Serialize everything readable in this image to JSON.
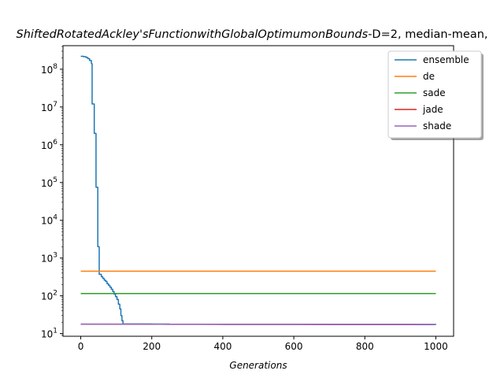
{
  "chart_data": {
    "type": "line",
    "title_italic": "ShiftedRotatedAckley'sFunctionwithGlobalOptimumonBounds",
    "title_rest": "-D=2, median-mean, ",
    "xlabel": "Generations",
    "ylabel": "",
    "yscale": "log",
    "xlim": [
      -50,
      1050
    ],
    "ylim": [
      8.5,
      420000000
    ],
    "x_ticks": [
      0,
      200,
      400,
      600,
      800,
      1000
    ],
    "y_tick_exponents": [
      1,
      2,
      3,
      4,
      5,
      6,
      7,
      8
    ],
    "y_tick_base": "10",
    "grid": false,
    "legend_placement": "top-right",
    "series": [
      {
        "name": "ensemble",
        "color": "#1f77b4",
        "step": true,
        "points": [
          [
            0,
            220000000
          ],
          [
            8,
            215000000
          ],
          [
            15,
            205000000
          ],
          [
            20,
            190000000
          ],
          [
            25,
            170000000
          ],
          [
            30,
            140000000
          ],
          [
            32,
            12000000
          ],
          [
            36,
            12000000
          ],
          [
            38,
            2000000
          ],
          [
            42,
            2000000
          ],
          [
            43,
            75000
          ],
          [
            47,
            75000
          ],
          [
            48,
            2000
          ],
          [
            51,
            2000
          ],
          [
            52,
            370
          ],
          [
            58,
            320
          ],
          [
            62,
            290
          ],
          [
            66,
            260
          ],
          [
            70,
            240
          ],
          [
            74,
            210
          ],
          [
            78,
            190
          ],
          [
            82,
            170
          ],
          [
            86,
            150
          ],
          [
            90,
            130
          ],
          [
            94,
            110
          ],
          [
            98,
            95
          ],
          [
            102,
            80
          ],
          [
            106,
            60
          ],
          [
            110,
            45
          ],
          [
            113,
            30
          ],
          [
            116,
            22
          ],
          [
            119,
            18
          ],
          [
            125,
            18
          ],
          [
            200,
            17.9
          ],
          [
            250,
            17.7
          ],
          [
            400,
            17.6
          ],
          [
            700,
            17.5
          ],
          [
            1000,
            17.4
          ]
        ]
      },
      {
        "name": "de",
        "color": "#ff7f0e",
        "step": false,
        "points": [
          [
            0,
            450
          ],
          [
            1000,
            450
          ]
        ]
      },
      {
        "name": "sade",
        "color": "#2ca02c",
        "step": false,
        "points": [
          [
            0,
            115
          ],
          [
            1000,
            115
          ]
        ]
      },
      {
        "name": "jade",
        "color": "#d62728",
        "step": false,
        "points": [
          [
            0,
            17.8
          ],
          [
            200,
            17.7
          ],
          [
            400,
            17.6
          ],
          [
            700,
            17.5
          ],
          [
            1000,
            17.4
          ]
        ]
      },
      {
        "name": "shade",
        "color": "#9467bd",
        "step": false,
        "points": [
          [
            0,
            17.8
          ],
          [
            200,
            17.8
          ],
          [
            250,
            17.6
          ],
          [
            400,
            17.6
          ],
          [
            700,
            17.5
          ],
          [
            1000,
            17.3
          ]
        ]
      }
    ]
  }
}
